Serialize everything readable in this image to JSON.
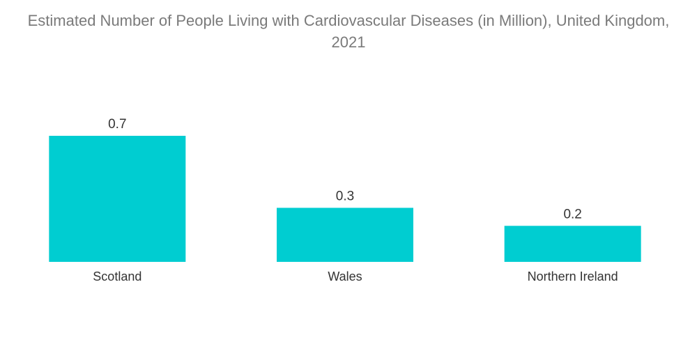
{
  "chart_data": {
    "type": "bar",
    "title": "Estimated Number of People Living with Cardiovascular Diseases (in Million), United Kingdom, 2021",
    "categories": [
      "Scotland",
      "Wales",
      "Northern Ireland"
    ],
    "values": [
      0.7,
      0.3,
      0.2
    ],
    "data_labels": [
      "0.7",
      "0.3",
      "0.2"
    ],
    "xlabel": "",
    "ylabel": "",
    "ylim": [
      0,
      0.7
    ],
    "grid": false,
    "legend": "none",
    "colors": {
      "bar": "#00cdd1"
    }
  }
}
